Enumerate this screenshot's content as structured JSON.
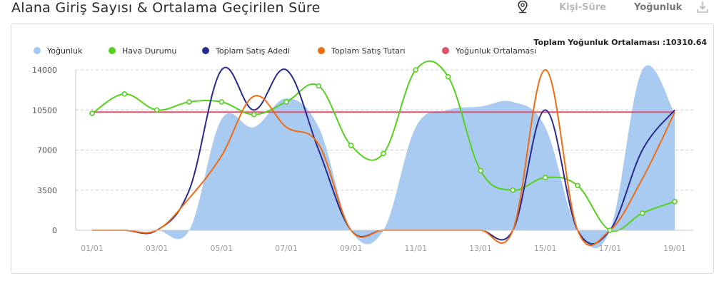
{
  "header": {
    "title": "Alana Giriş Sayısı & Ortalama Geçirilen Süre",
    "tabs": [
      {
        "label": "Kişi-Süre",
        "active": false
      },
      {
        "label": "Yoğunluk",
        "active": true
      }
    ],
    "icons": [
      "map-pin-icon",
      "download-icon"
    ]
  },
  "colors": {
    "density": "#a4c8f0",
    "weather": "#56d01f",
    "sales_count": "#2a2a8c",
    "sales_amount": "#ef6c12",
    "density_avg": "#e0516c",
    "grid": "#d0d0d0",
    "axis": "#c8c8c8"
  },
  "chart_data": {
    "type": "line",
    "title": "",
    "annotation": "Toplam Yoğunluk Ortalaması :10310.64",
    "legend_position": "top-left",
    "grid": "horizontal dashed",
    "x": [
      "01/01",
      "02/01",
      "03/01",
      "04/01",
      "05/01",
      "06/01",
      "07/01",
      "08/01",
      "09/01",
      "10/01",
      "11/01",
      "12/01",
      "13/01",
      "14/01",
      "15/01",
      "16/01",
      "17/01",
      "18/01",
      "19/01"
    ],
    "x_tick_labels": [
      "01/01",
      "03/01",
      "05/01",
      "07/01",
      "09/01",
      "11/01",
      "13/01",
      "15/01",
      "17/01",
      "19/01"
    ],
    "y_ticks": [
      "0",
      "3500",
      "7000",
      "10500",
      "14000"
    ],
    "ylim": [
      0,
      14000
    ],
    "series": [
      {
        "name": "Yoğunluk",
        "type": "area",
        "values": [
          0,
          0,
          0,
          0,
          9700,
          9000,
          11500,
          9000,
          0,
          0,
          9000,
          10500,
          10800,
          11200,
          9000,
          0,
          0,
          14000,
          10200
        ]
      },
      {
        "name": "Hava Durumu",
        "type": "line",
        "markers": true,
        "values": [
          10200,
          11900,
          10500,
          11200,
          11200,
          10100,
          11200,
          12600,
          7400,
          6700,
          14000,
          13400,
          5200,
          3500,
          4600,
          3900,
          0,
          1500,
          2500
        ]
      },
      {
        "name": "Toplam Satış Adedi",
        "type": "line",
        "values": [
          0,
          0,
          0,
          3500,
          14000,
          10500,
          14000,
          7000,
          0,
          0,
          0,
          0,
          0,
          0,
          10500,
          0,
          0,
          7000,
          10500
        ]
      },
      {
        "name": "Toplam Satış Tutarı",
        "type": "line",
        "values": [
          0,
          0,
          0,
          2800,
          6500,
          11700,
          9000,
          7500,
          0,
          0,
          0,
          0,
          0,
          0,
          14000,
          0,
          0,
          4500,
          10300
        ]
      },
      {
        "name": "Yoğunluk Ortalaması",
        "type": "line",
        "values": [
          10310.64,
          10310.64,
          10310.64,
          10310.64,
          10310.64,
          10310.64,
          10310.64,
          10310.64,
          10310.64,
          10310.64,
          10310.64,
          10310.64,
          10310.64,
          10310.64,
          10310.64,
          10310.64,
          10310.64,
          10310.64,
          10310.64
        ]
      }
    ]
  }
}
